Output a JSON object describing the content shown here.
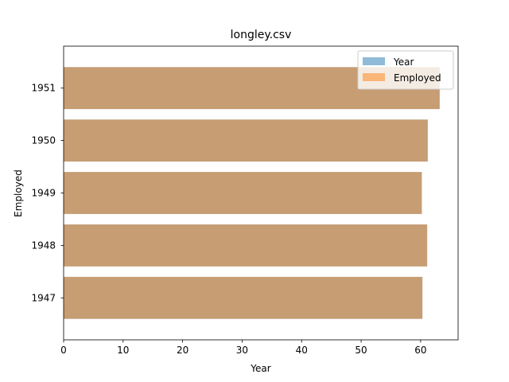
{
  "chart_data": {
    "type": "bar",
    "orientation": "horizontal",
    "title": "longley.csv",
    "xlabel": "Year",
    "ylabel": "Employed",
    "categories": [
      "1947",
      "1948",
      "1949",
      "1950",
      "1951"
    ],
    "series": [
      {
        "name": "Year",
        "values": [
          60.3,
          61.1,
          60.2,
          61.2,
          63.2
        ],
        "color": "#1f77b4",
        "alpha": 0.5
      },
      {
        "name": "Employed",
        "values": [
          60.3,
          61.1,
          60.2,
          61.2,
          63.2
        ],
        "color": "#ff7f0e",
        "alpha": 0.5
      }
    ],
    "xlim": [
      0,
      66.3
    ],
    "xticks": [
      0,
      10,
      20,
      30,
      40,
      50,
      60
    ],
    "grid": false,
    "legend": "top-right"
  }
}
